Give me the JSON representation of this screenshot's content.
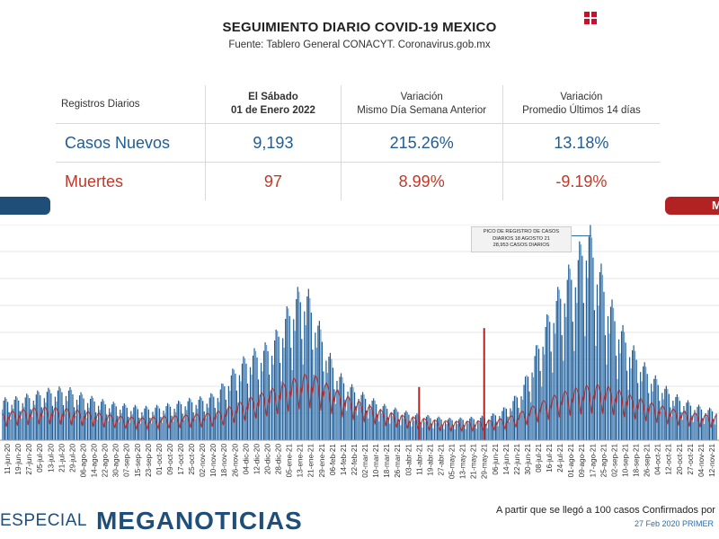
{
  "header": {
    "title": "SEGUIMIENTO DIARIO COVID-19 MEXICO",
    "subtitle": "Fuente: Tablero General CONACYT. Coronavirus.gob.mx"
  },
  "stats_table": {
    "headers": [
      "Registros Diarios",
      "El Sábado\n01 de Enero 2022",
      "Variación\nMismo Día Semana Anterior",
      "Variación\nPromedio Últimos 14 días"
    ],
    "rows": [
      {
        "label": "Casos Nuevos",
        "value": "9,193",
        "var_week": "215.26%",
        "var_14d": "13.18%"
      },
      {
        "label": "Muertes",
        "value": "97",
        "var_week": "8.99%",
        "var_14d": "-9.19%"
      }
    ]
  },
  "side_tabs": {
    "right_label": "M"
  },
  "annotation": {
    "lines": [
      "PICO DE REGISTRO DE CASOS",
      "DIARIOS 18 AGOSTO 21",
      "28,953 CASOS DIARIOS"
    ]
  },
  "footer": {
    "especial": "ESPECIAL",
    "brand": "MEGANOTICIAS",
    "note": "A partir que se llegó a 100 casos Confirmados por",
    "date": "27 Feb 2020 PRIMER"
  },
  "colors": {
    "cases": "#1f5d94",
    "cases_light": "#6d9ecf",
    "deaths": "#b22222",
    "navy": "#1f4e79"
  },
  "chart_data": {
    "type": "bar",
    "title": "",
    "xlabel": "",
    "ylabel": "",
    "grid": true,
    "ylim": [
      0,
      30000
    ],
    "categories": [
      "11-jun-20",
      "19-jun-20",
      "27-jun-20",
      "05-jul-20",
      "13-jul-20",
      "21-jul-20",
      "29-jul-20",
      "06-ago-20",
      "14-ago-20",
      "22-ago-20",
      "30-ago-20",
      "07-sep-20",
      "15-sep-20",
      "23-sep-20",
      "01-oct-20",
      "09-oct-20",
      "17-oct-20",
      "25-oct-20",
      "02-nov-20",
      "10-nov-20",
      "18-nov-20",
      "26-nov-20",
      "04-dic-20",
      "12-dic-20",
      "20-dic-20",
      "28-dic-20",
      "05-ene-21",
      "13-ene-21",
      "21-ene-21",
      "29-ene-21",
      "06-feb-21",
      "14-feb-21",
      "22-feb-21",
      "02-mar-21",
      "10-mar-21",
      "18-mar-21",
      "26-mar-21",
      "03-abr-21",
      "11-abr-21",
      "19-abr-21",
      "27-abr-21",
      "05-may-21",
      "13-may-21",
      "21-may-21",
      "29-may-21",
      "06-jun-21",
      "14-jun-21",
      "22-jun-21",
      "30-jun-21",
      "08-jul-21",
      "16-jul-21",
      "24-jul-21",
      "01-ago-21",
      "09-ago-21",
      "17-ago-21",
      "25-ago-21",
      "02-sep-21",
      "10-sep-21",
      "18-sep-21",
      "26-sep-21",
      "04-oct-21",
      "12-oct-21",
      "20-oct-21",
      "27-oct-21",
      "04-nov-21",
      "12-nov-21"
    ],
    "series": [
      {
        "name": "Casos Nuevos",
        "values": [
          5500,
          5600,
          5900,
          6300,
          6700,
          6900,
          7000,
          6300,
          5800,
          5400,
          5000,
          4800,
          4600,
          4400,
          4500,
          4700,
          5000,
          5400,
          5600,
          5800,
          6800,
          8800,
          10500,
          11700,
          12300,
          13500,
          16500,
          19500,
          20500,
          16500,
          12000,
          9000,
          7500,
          6400,
          5600,
          4800,
          4300,
          3900,
          3500,
          3300,
          3100,
          2900,
          2900,
          3000,
          3100,
          3300,
          3900,
          5200,
          7200,
          11200,
          15300,
          19000,
          22000,
          24500,
          28953,
          24000,
          19000,
          15500,
          12800,
          10500,
          8700,
          7300,
          6100,
          5300,
          4700,
          4200
        ]
      },
      {
        "name": "Muertes",
        "values": [
          3500,
          3800,
          4000,
          4200,
          4300,
          4200,
          4100,
          3900,
          3700,
          3500,
          3300,
          3100,
          3000,
          2900,
          3000,
          3100,
          3200,
          3300,
          3400,
          3500,
          3800,
          4400,
          5000,
          5600,
          6200,
          6800,
          7400,
          8100,
          8600,
          8300,
          7300,
          6400,
          5600,
          5000,
          4400,
          3900,
          3500,
          3200,
          3000,
          2800,
          2600,
          2500,
          2450,
          2450,
          2500,
          2600,
          2800,
          3200,
          3800,
          4500,
          5200,
          5900,
          6400,
          6800,
          7100,
          7200,
          6900,
          6400,
          5800,
          5300,
          4800,
          4400,
          4000,
          3700,
          3500,
          3300
        ]
      }
    ],
    "spikes": [
      {
        "series": "Muertes",
        "x": "11-abr-21",
        "value": 7400
      },
      {
        "series": "Muertes",
        "x": "01-jun-21",
        "value": 15600
      }
    ]
  }
}
